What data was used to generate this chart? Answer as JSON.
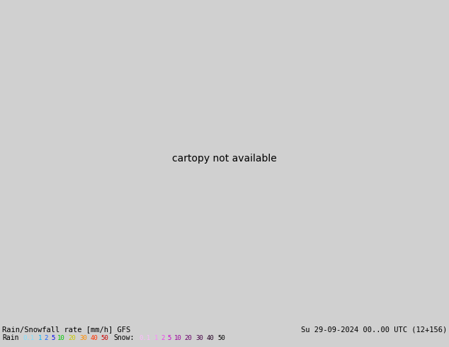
{
  "title_line1": "Rain/Snowfall rate [mm/h] GFS",
  "title_line2": "Su 29-09-2024 00..00 UTC (12+156)",
  "rain_values": [
    "0.1",
    "1",
    "2",
    "5",
    "10",
    "20",
    "30",
    "40",
    "50"
  ],
  "snow_values": [
    "0.1",
    "1",
    "2",
    "5",
    "10",
    "20",
    "30",
    "40",
    "50"
  ],
  "rain_colors_legend": [
    "#80e8ff",
    "#00c8ff",
    "#1478ff",
    "#0000ff",
    "#00c800",
    "#c8c800",
    "#ff8c00",
    "#ff3200",
    "#c80000"
  ],
  "snow_colors_legend": [
    "#ffccff",
    "#ff99ff",
    "#ee55ee",
    "#cc00cc",
    "#990099",
    "#660066",
    "#440044",
    "#220022",
    "#000000"
  ],
  "footer_bg": "#d8d8d8",
  "map_ocean_color": "#c8d8c8",
  "figsize": [
    6.34,
    4.9
  ],
  "dpi": 100,
  "extent": [
    -130,
    -60,
    20,
    55
  ]
}
